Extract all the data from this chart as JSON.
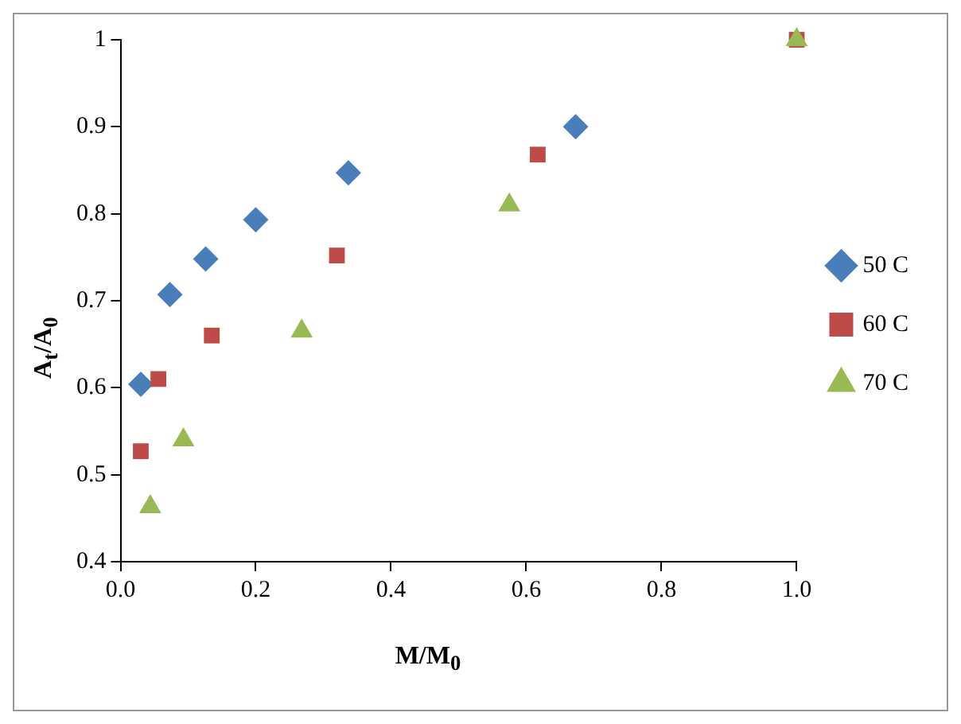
{
  "chart_data": {
    "type": "scatter",
    "xlabel": "M/M$_{0}$",
    "ylabel": "A$_{t}$/A$_{0}$",
    "xlim": [
      0,
      1
    ],
    "xticks": [
      {
        "value": 0,
        "label": "0.0"
      },
      {
        "value": 0.2,
        "label": "0.2"
      },
      {
        "value": 0.4,
        "label": "0.4"
      },
      {
        "value": 0.6,
        "label": "0.6"
      },
      {
        "value": 0.8,
        "label": "0.8"
      },
      {
        "value": 1,
        "label": "1.0"
      }
    ],
    "ylim": [
      0.4,
      1
    ],
    "yticks": [
      0.4,
      0.5,
      0.6,
      0.7,
      0.8,
      0.9,
      1
    ],
    "grid": false,
    "legend": "right",
    "series": [
      {
        "name": "50 C",
        "color": "#4a7ebb",
        "marker": "diamond",
        "x": [
          0.03,
          0.073,
          0.126,
          0.2,
          0.337,
          0.673
        ],
        "values": [
          0.604,
          0.707,
          0.748,
          0.793,
          0.847,
          0.9
        ]
      },
      {
        "name": "60 C",
        "color": "#be4b48",
        "marker": "square",
        "x": [
          0.03,
          0.056,
          0.135,
          0.32,
          0.617,
          1
        ],
        "values": [
          0.527,
          0.61,
          0.66,
          0.752,
          0.868,
          1
        ]
      },
      {
        "name": "70 C",
        "color": "#98b954",
        "marker": "triangle",
        "x": [
          0.044,
          0.093,
          0.268,
          0.575,
          1
        ],
        "values": [
          0.463,
          0.54,
          0.665,
          0.81,
          1
        ]
      }
    ]
  }
}
